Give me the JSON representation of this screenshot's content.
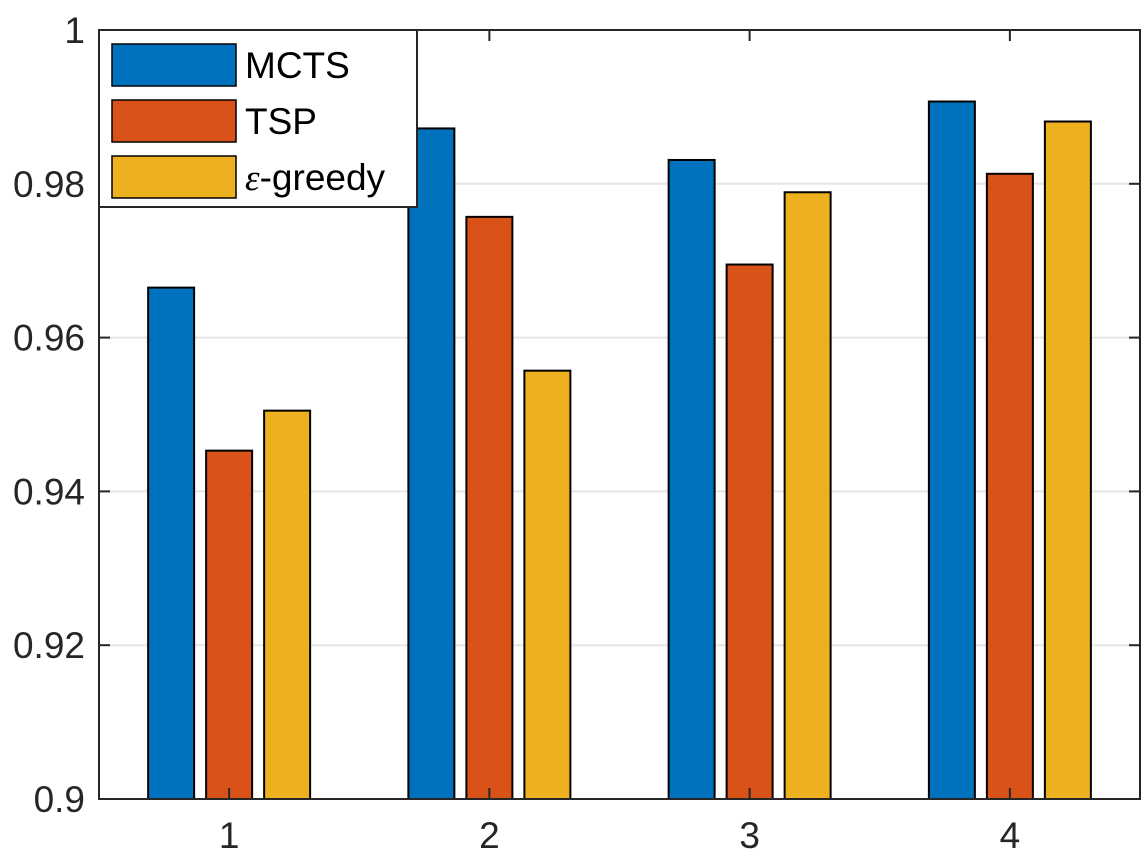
{
  "chart_data": {
    "type": "bar",
    "categories": [
      "1",
      "2",
      "3",
      "4"
    ],
    "series": [
      {
        "name": "MCTS",
        "color": "#0072BD",
        "values": [
          0.9665,
          0.9872,
          0.9831,
          0.9907
        ]
      },
      {
        "name": "TSP",
        "color": "#D95319",
        "values": [
          0.9453,
          0.9757,
          0.9695,
          0.9813
        ]
      },
      {
        "name": "ε-greedy",
        "color": "#EDB120",
        "values": [
          0.9505,
          0.9557,
          0.9789,
          0.9881
        ]
      }
    ],
    "series_labels": {
      "eps_symbol": "ε",
      "eps_rest": "-greedy"
    },
    "ylim": [
      0.9,
      1.0
    ],
    "yticks": [
      "0.9",
      "0.92",
      "0.94",
      "0.96",
      "0.98",
      "1"
    ],
    "ytick_values": [
      0.9,
      0.92,
      0.94,
      0.96,
      0.98,
      1.0
    ],
    "grid": "horizontal",
    "legend_position": "top-left",
    "title": "",
    "xlabel": "",
    "ylabel": ""
  }
}
